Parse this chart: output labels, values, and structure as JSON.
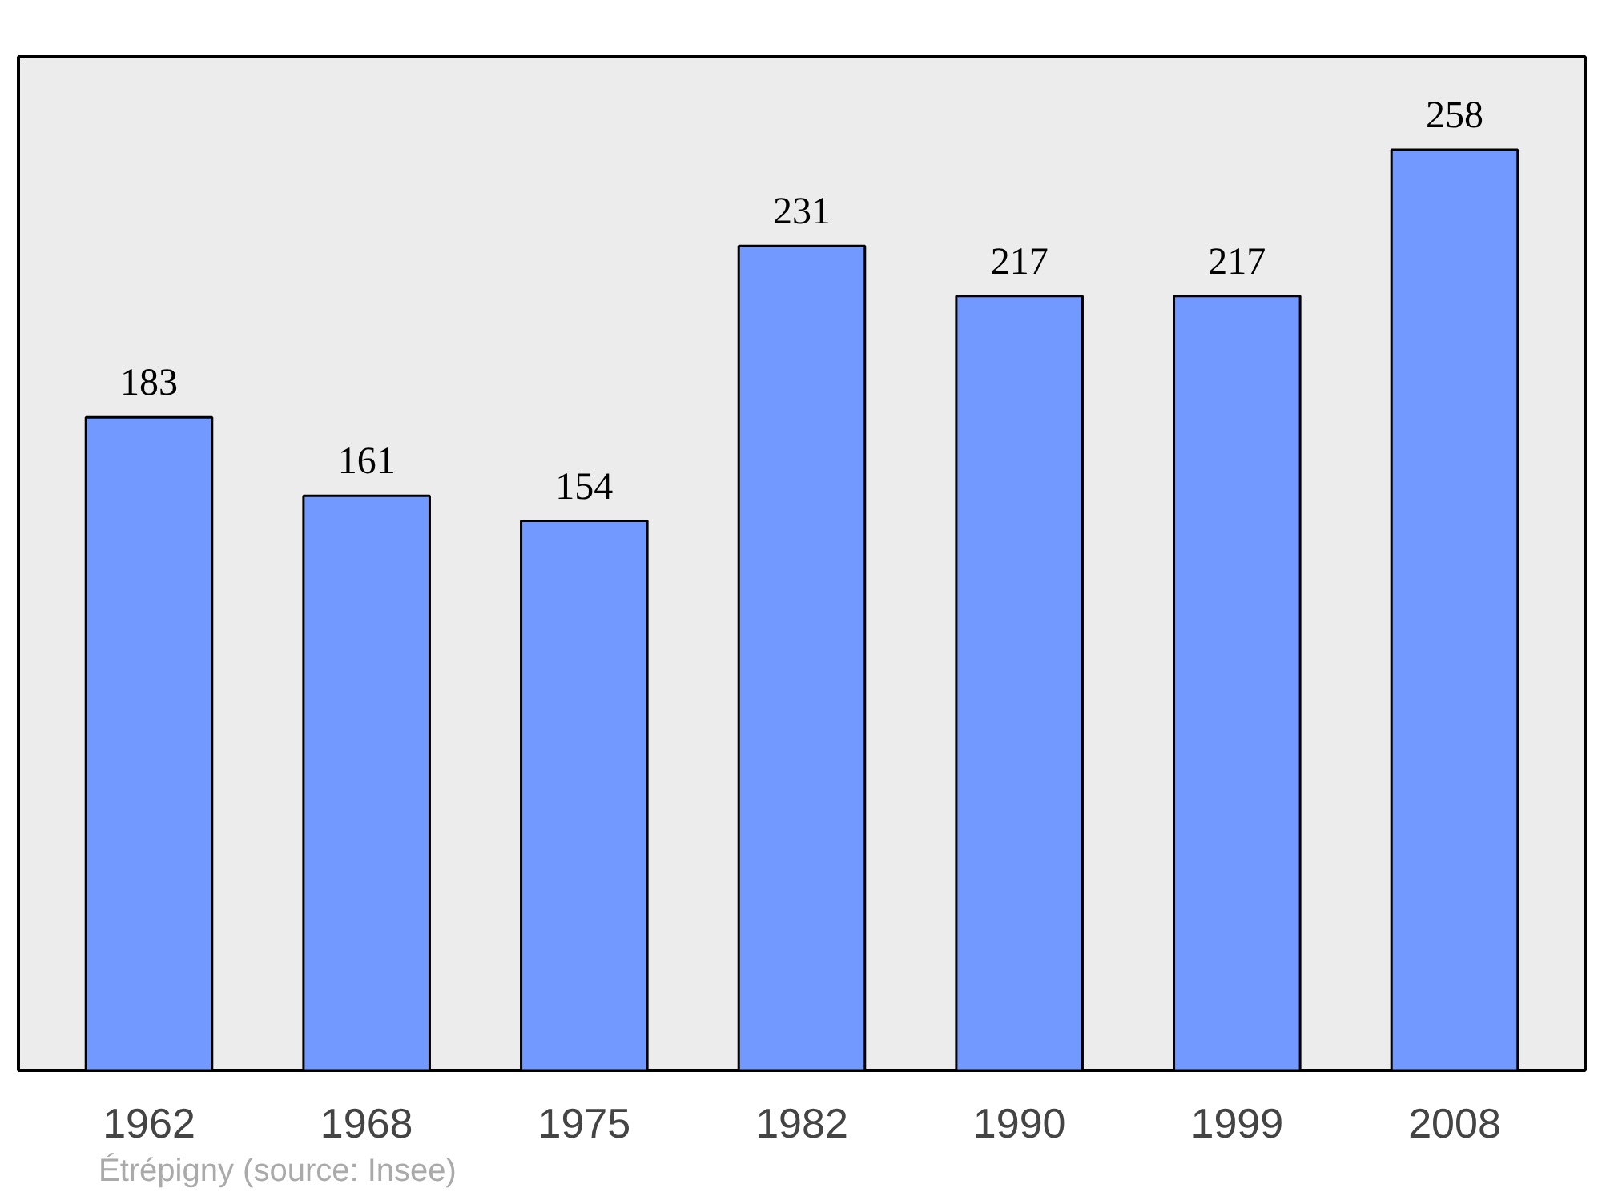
{
  "chart_data": {
    "type": "bar",
    "categories": [
      "1962",
      "1968",
      "1975",
      "1982",
      "1990",
      "1999",
      "2008"
    ],
    "values": [
      183,
      161,
      154,
      231,
      217,
      217,
      258
    ],
    "color": "#7299ff",
    "data_labels": true,
    "ylim": [
      0,
      284
    ],
    "tick_labels": "x",
    "grid": false,
    "annotations": [
      "Étrépigny    (source: Insee)"
    ]
  }
}
